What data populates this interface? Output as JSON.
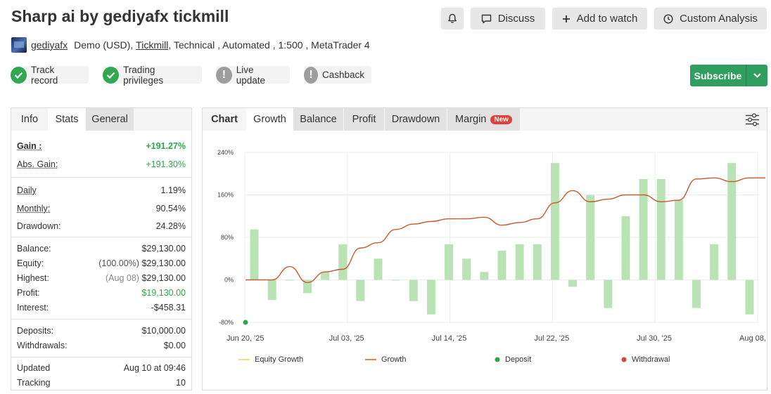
{
  "header": {
    "title": "Sharp ai by gediyafx tickmill",
    "discuss_label": "Discuss",
    "watch_label": "Add to watch",
    "custom_label": "Custom Analysis"
  },
  "meta": {
    "user": "gediyafx",
    "account_type": "Demo (USD),",
    "broker": "Tickmill",
    "rest": ", Technical , Automated , 1:500 , MetaTrader 4"
  },
  "badges": {
    "track_record": "Track record",
    "trading_privileges": "Trading privileges",
    "live_update": "Live update",
    "cashback": "Cashback"
  },
  "subscribe_label": "Subscribe",
  "left_tabs": [
    "Info",
    "Stats",
    "General"
  ],
  "stats": {
    "gain": {
      "k": "Gain :",
      "v": "+191.27%"
    },
    "abs_gain": {
      "k": "Abs. Gain:",
      "v": "+191.30%"
    },
    "daily": {
      "k": "Daily",
      "v": "1.19%"
    },
    "monthly": {
      "k": "Monthly:",
      "v": "90.54%"
    },
    "drawdown": {
      "k": "Drawdown:",
      "v": "24.28%"
    },
    "balance": {
      "k": "Balance:",
      "v": "$29,130.00"
    },
    "equity": {
      "k": "Equity:",
      "pre": "(100.00%)",
      "v": "$29,130.00"
    },
    "highest": {
      "k": "Highest:",
      "pre": "(Aug 08)",
      "v": "$29,130.00"
    },
    "profit": {
      "k": "Profit:",
      "v": "$19,130.00"
    },
    "interest": {
      "k": "Interest:",
      "v": "-$458.31"
    },
    "deposits": {
      "k": "Deposits:",
      "v": "$10,000.00"
    },
    "withdrawals": {
      "k": "Withdrawals:",
      "v": "$0.00"
    },
    "updated": {
      "k": "Updated",
      "v": "Aug 10 at 09:46"
    },
    "tracking": {
      "k": "Tracking",
      "v": "10"
    }
  },
  "chart_tabs": {
    "chart": "Chart",
    "growth": "Growth",
    "balance": "Balance",
    "profit": "Profit",
    "drawdown": "Drawdown",
    "margin": "Margin",
    "new": "New"
  },
  "colors": {
    "bar": "#b9e3b4",
    "growth_line": "#c85a2e",
    "equity_line": "#e6d060",
    "deposit": "#2fa64e",
    "withdrawal": "#d9423b",
    "subscribe": "#2f9e5f"
  },
  "chart_data": {
    "type": "bar+line",
    "y_ticks": [
      "240%",
      "160%",
      "80%",
      "0%",
      "-80%"
    ],
    "ylim": [
      -80,
      240
    ],
    "x_ticks": [
      "Jun 20, '25",
      "Jul 03, '25",
      "Jul 14, '25",
      "Jul 22, '25",
      "Jul 30, '25",
      "Aug 08, '25"
    ],
    "bars": [
      95,
      -38,
      0,
      -25,
      15,
      67,
      -40,
      40,
      0,
      -40,
      -65,
      67,
      40,
      15,
      55,
      67,
      67,
      220,
      -13,
      160,
      -53,
      120,
      190,
      190,
      150,
      -53,
      67,
      220,
      -65
    ],
    "growth": [
      [
        0,
        0
      ],
      [
        1.5,
        0
      ],
      [
        2.5,
        25
      ],
      [
        3.5,
        -5
      ],
      [
        4.5,
        15
      ],
      [
        5.5,
        20
      ],
      [
        6.5,
        60
      ],
      [
        7.5,
        70
      ],
      [
        8.5,
        95
      ],
      [
        9.5,
        105
      ],
      [
        10.5,
        110
      ],
      [
        11.5,
        115
      ],
      [
        12.5,
        115
      ],
      [
        13.5,
        118
      ],
      [
        14.5,
        103
      ],
      [
        15.5,
        108
      ],
      [
        16.5,
        115
      ],
      [
        17.5,
        145
      ],
      [
        18.5,
        168
      ],
      [
        19.5,
        147
      ],
      [
        20.5,
        152
      ],
      [
        21.5,
        160
      ],
      [
        22.5,
        160
      ],
      [
        23.5,
        147
      ],
      [
        24.5,
        150
      ],
      [
        25.5,
        190
      ],
      [
        26.5,
        192
      ],
      [
        27.5,
        185
      ],
      [
        28.5,
        192
      ],
      [
        29.5,
        192
      ]
    ],
    "deposit_point": [
      0,
      -80
    ],
    "legend": [
      "Equity Growth",
      "Growth",
      "Deposit",
      "Withdrawal"
    ],
    "grid": true
  }
}
